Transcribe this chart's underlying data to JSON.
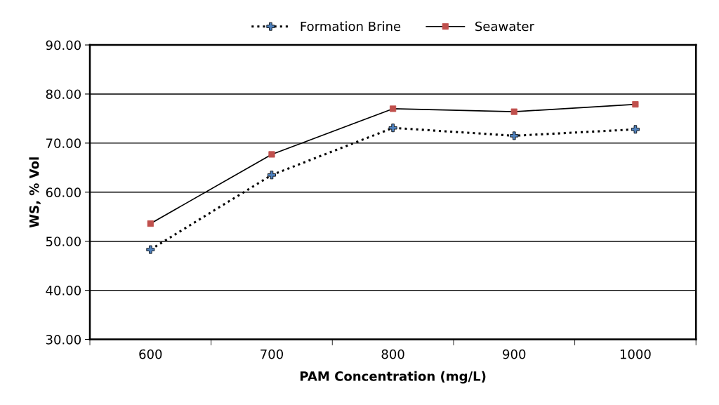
{
  "chart_data": {
    "type": "line",
    "xlabel": "PAM Concentration (mg/L)",
    "ylabel": "WS, % Vol",
    "categories": [
      "600",
      "700",
      "800",
      "900",
      "1000"
    ],
    "series": [
      {
        "name": "Formation Brine",
        "color": "#4f81bd",
        "values": [
          48.3,
          63.5,
          73.1,
          71.5,
          72.8
        ],
        "marker": "cross",
        "line_style": "dotted"
      },
      {
        "name": "Seawater",
        "color": "#c0504d",
        "values": [
          53.6,
          67.7,
          77.0,
          76.4,
          77.9
        ],
        "marker": "square",
        "line_style": "solid"
      }
    ],
    "ylim": [
      30,
      90
    ],
    "yticks": [
      {
        "value": 30,
        "label": "30.00"
      },
      {
        "value": 40,
        "label": "40.00"
      },
      {
        "value": 50,
        "label": "50.00"
      },
      {
        "value": 60,
        "label": "60.00"
      },
      {
        "value": 70,
        "label": "70.00"
      },
      {
        "value": 80,
        "label": "80.00"
      },
      {
        "value": 90,
        "label": "90.00"
      }
    ],
    "grid": "y",
    "legend": "top"
  }
}
